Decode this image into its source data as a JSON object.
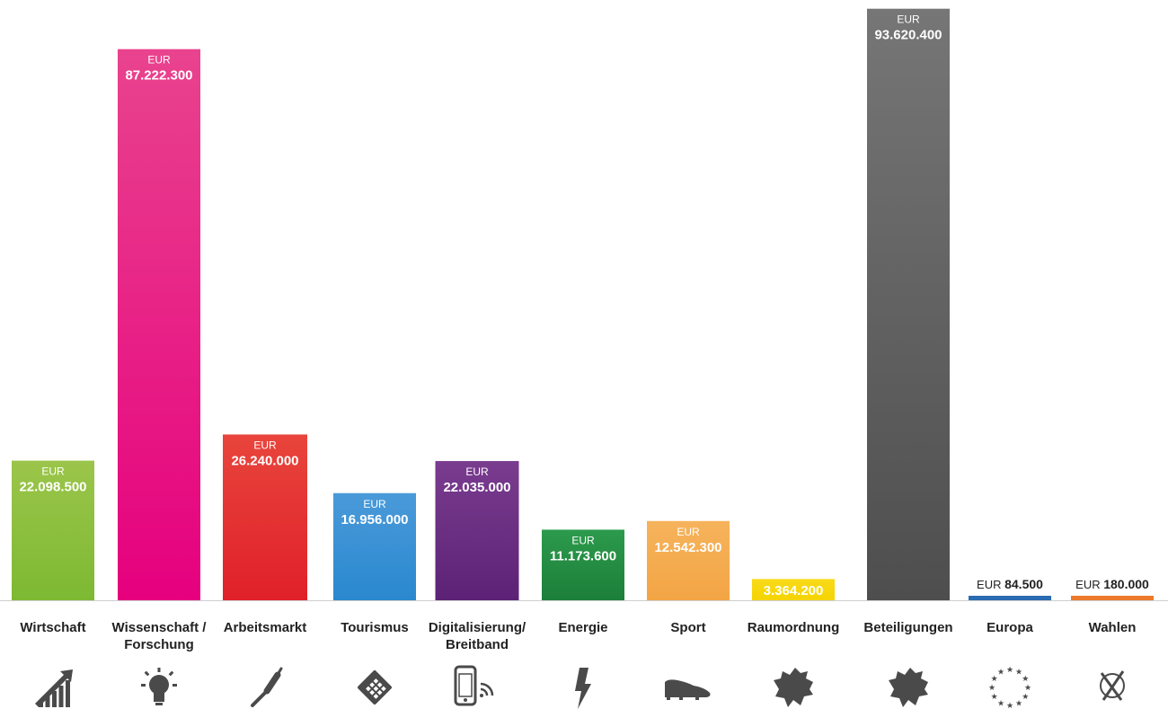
{
  "chart_data": {
    "type": "bar",
    "title": "",
    "xlabel": "",
    "ylabel": "",
    "currency": "EUR",
    "ylim": [
      0,
      95000000
    ],
    "grid": false,
    "legend": "none",
    "categories": [
      {
        "label_lines": [
          "Wirtschaft"
        ],
        "icon": "rising-chart-icon"
      },
      {
        "label_lines": [
          "Wissenschaft /",
          "Forschung"
        ],
        "icon": "lightbulb-icon"
      },
      {
        "label_lines": [
          "Arbeitsmarkt"
        ],
        "icon": "screwdriver-icon"
      },
      {
        "label_lines": [
          "Tourismus"
        ],
        "icon": "calendar-icon"
      },
      {
        "label_lines": [
          "Digitalisierung/",
          "Breitband"
        ],
        "icon": "smartphone-wifi-icon"
      },
      {
        "label_lines": [
          "Energie"
        ],
        "icon": "lightning-icon"
      },
      {
        "label_lines": [
          "Sport"
        ],
        "icon": "sport-shoe-icon"
      },
      {
        "label_lines": [
          "Raumordnung"
        ],
        "icon": "region-map-icon"
      },
      {
        "label_lines": [
          "Beteiligungen"
        ],
        "icon": "region-map-icon"
      },
      {
        "label_lines": [
          "Europa"
        ],
        "icon": "eu-stars-icon"
      },
      {
        "label_lines": [
          "Wahlen"
        ],
        "icon": "ballot-cross-icon"
      }
    ],
    "values": [
      22098500,
      87222300,
      26240000,
      16956000,
      22035000,
      11173600,
      12542300,
      3364200,
      93620400,
      84500,
      180000
    ],
    "value_labels": [
      "22.098.500",
      "87.222.300",
      "26.240.000",
      "16.956.000",
      "22.035.000",
      "11.173.600",
      "12.542.300",
      "3.364.200",
      "93.620.400",
      "84.500",
      "180.000"
    ],
    "colors": [
      [
        "#9bc54a",
        "#7db932"
      ],
      [
        "#e9438e",
        "#e6007e"
      ],
      [
        "#e8453c",
        "#e0202a"
      ],
      [
        "#4a9ad9",
        "#2a88cf"
      ],
      [
        "#7a3c8f",
        "#5c2276"
      ],
      [
        "#2c9a4c",
        "#1c7f3a"
      ],
      [
        "#f6b35c",
        "#f3a545"
      ],
      [
        "#f8da1a",
        "#f6d400"
      ],
      [
        "#767676",
        "#4e4e4e"
      ],
      [
        "#2a6bb2",
        "#2a6bb2"
      ],
      [
        "#ec7a2a",
        "#ec7a2a"
      ]
    ],
    "icon_color": "#4a4a4a",
    "baseline_color": "#cfcfcf"
  }
}
